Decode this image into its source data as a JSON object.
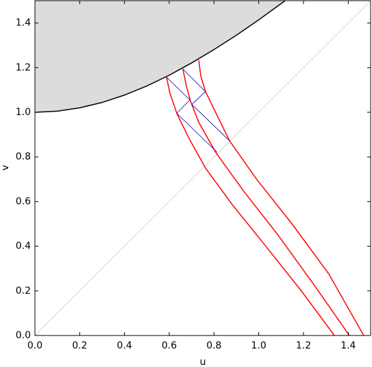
{
  "chart_data": {
    "type": "line",
    "xlabel": "u",
    "ylabel": "v",
    "xlim": [
      0,
      1.5
    ],
    "ylim": [
      0,
      1.5
    ],
    "xticks": [
      {
        "value": 0,
        "label": "0.0"
      },
      0.2,
      0.4,
      0.6,
      0.8,
      {
        "value": 1,
        "label": "1.0"
      },
      1.2,
      1.4
    ],
    "yticks": [
      {
        "value": 0,
        "label": "0.0"
      },
      0.2,
      0.4,
      0.6,
      0.8,
      {
        "value": 1,
        "label": "1.0"
      },
      1.2,
      1.4
    ],
    "series": [
      {
        "color": "#000000",
        "fill": "#dcdcdc",
        "x": [
          0,
          0.1,
          0.2,
          0.3,
          0.4,
          0.5,
          0.6,
          0.7,
          0.8,
          0.9,
          1.0,
          1.1,
          1.118
        ],
        "values": [
          1,
          1.005,
          1.02,
          1.044,
          1.077,
          1.118,
          1.166,
          1.221,
          1.281,
          1.345,
          1.414,
          1.487,
          1.5
        ]
      },
      {
        "color": "#d3d3d3",
        "x": [
          0,
          1.5
        ],
        "values": [
          0,
          1.5
        ]
      },
      {
        "color": "#ff0000",
        "x": [
          0.588,
          0.603,
          0.634,
          0.686,
          0.762,
          0.885,
          1.038,
          1.191,
          1.338
        ],
        "values": [
          1.157,
          1.087,
          0.995,
          0.888,
          0.75,
          0.582,
          0.392,
          0.199,
          0
        ]
      },
      {
        "color": "#ff0000",
        "x": [
          0.661,
          0.677,
          0.695,
          0.732,
          0.808,
          0.931,
          1.084,
          1.252,
          1.405
        ],
        "values": [
          1.194,
          1.117,
          1.05,
          0.955,
          0.82,
          0.649,
          0.453,
          0.22,
          0
        ]
      },
      {
        "color": "#ff0000",
        "x": [
          0.732,
          0.741,
          0.762,
          0.817,
          0.869,
          0.992,
          1.145,
          1.313,
          1.469
        ],
        "values": [
          1.234,
          1.163,
          1.093,
          0.98,
          0.873,
          0.698,
          0.505,
          0.276,
          0
        ]
      },
      {
        "color": "#0000aa",
        "x": [
          0.588,
          0.692,
          null,
          0.661,
          0.762,
          null,
          0.692,
          0.634,
          null,
          0.762,
          0.701,
          null,
          0.634,
          0.814,
          null,
          0.701,
          0.869
        ],
        "values": [
          1.157,
          1.056,
          null,
          1.194,
          1.093,
          null,
          1.056,
          0.995,
          null,
          1.093,
          1.035,
          null,
          0.995,
          0.821,
          null,
          1.035,
          0.873
        ]
      }
    ]
  }
}
